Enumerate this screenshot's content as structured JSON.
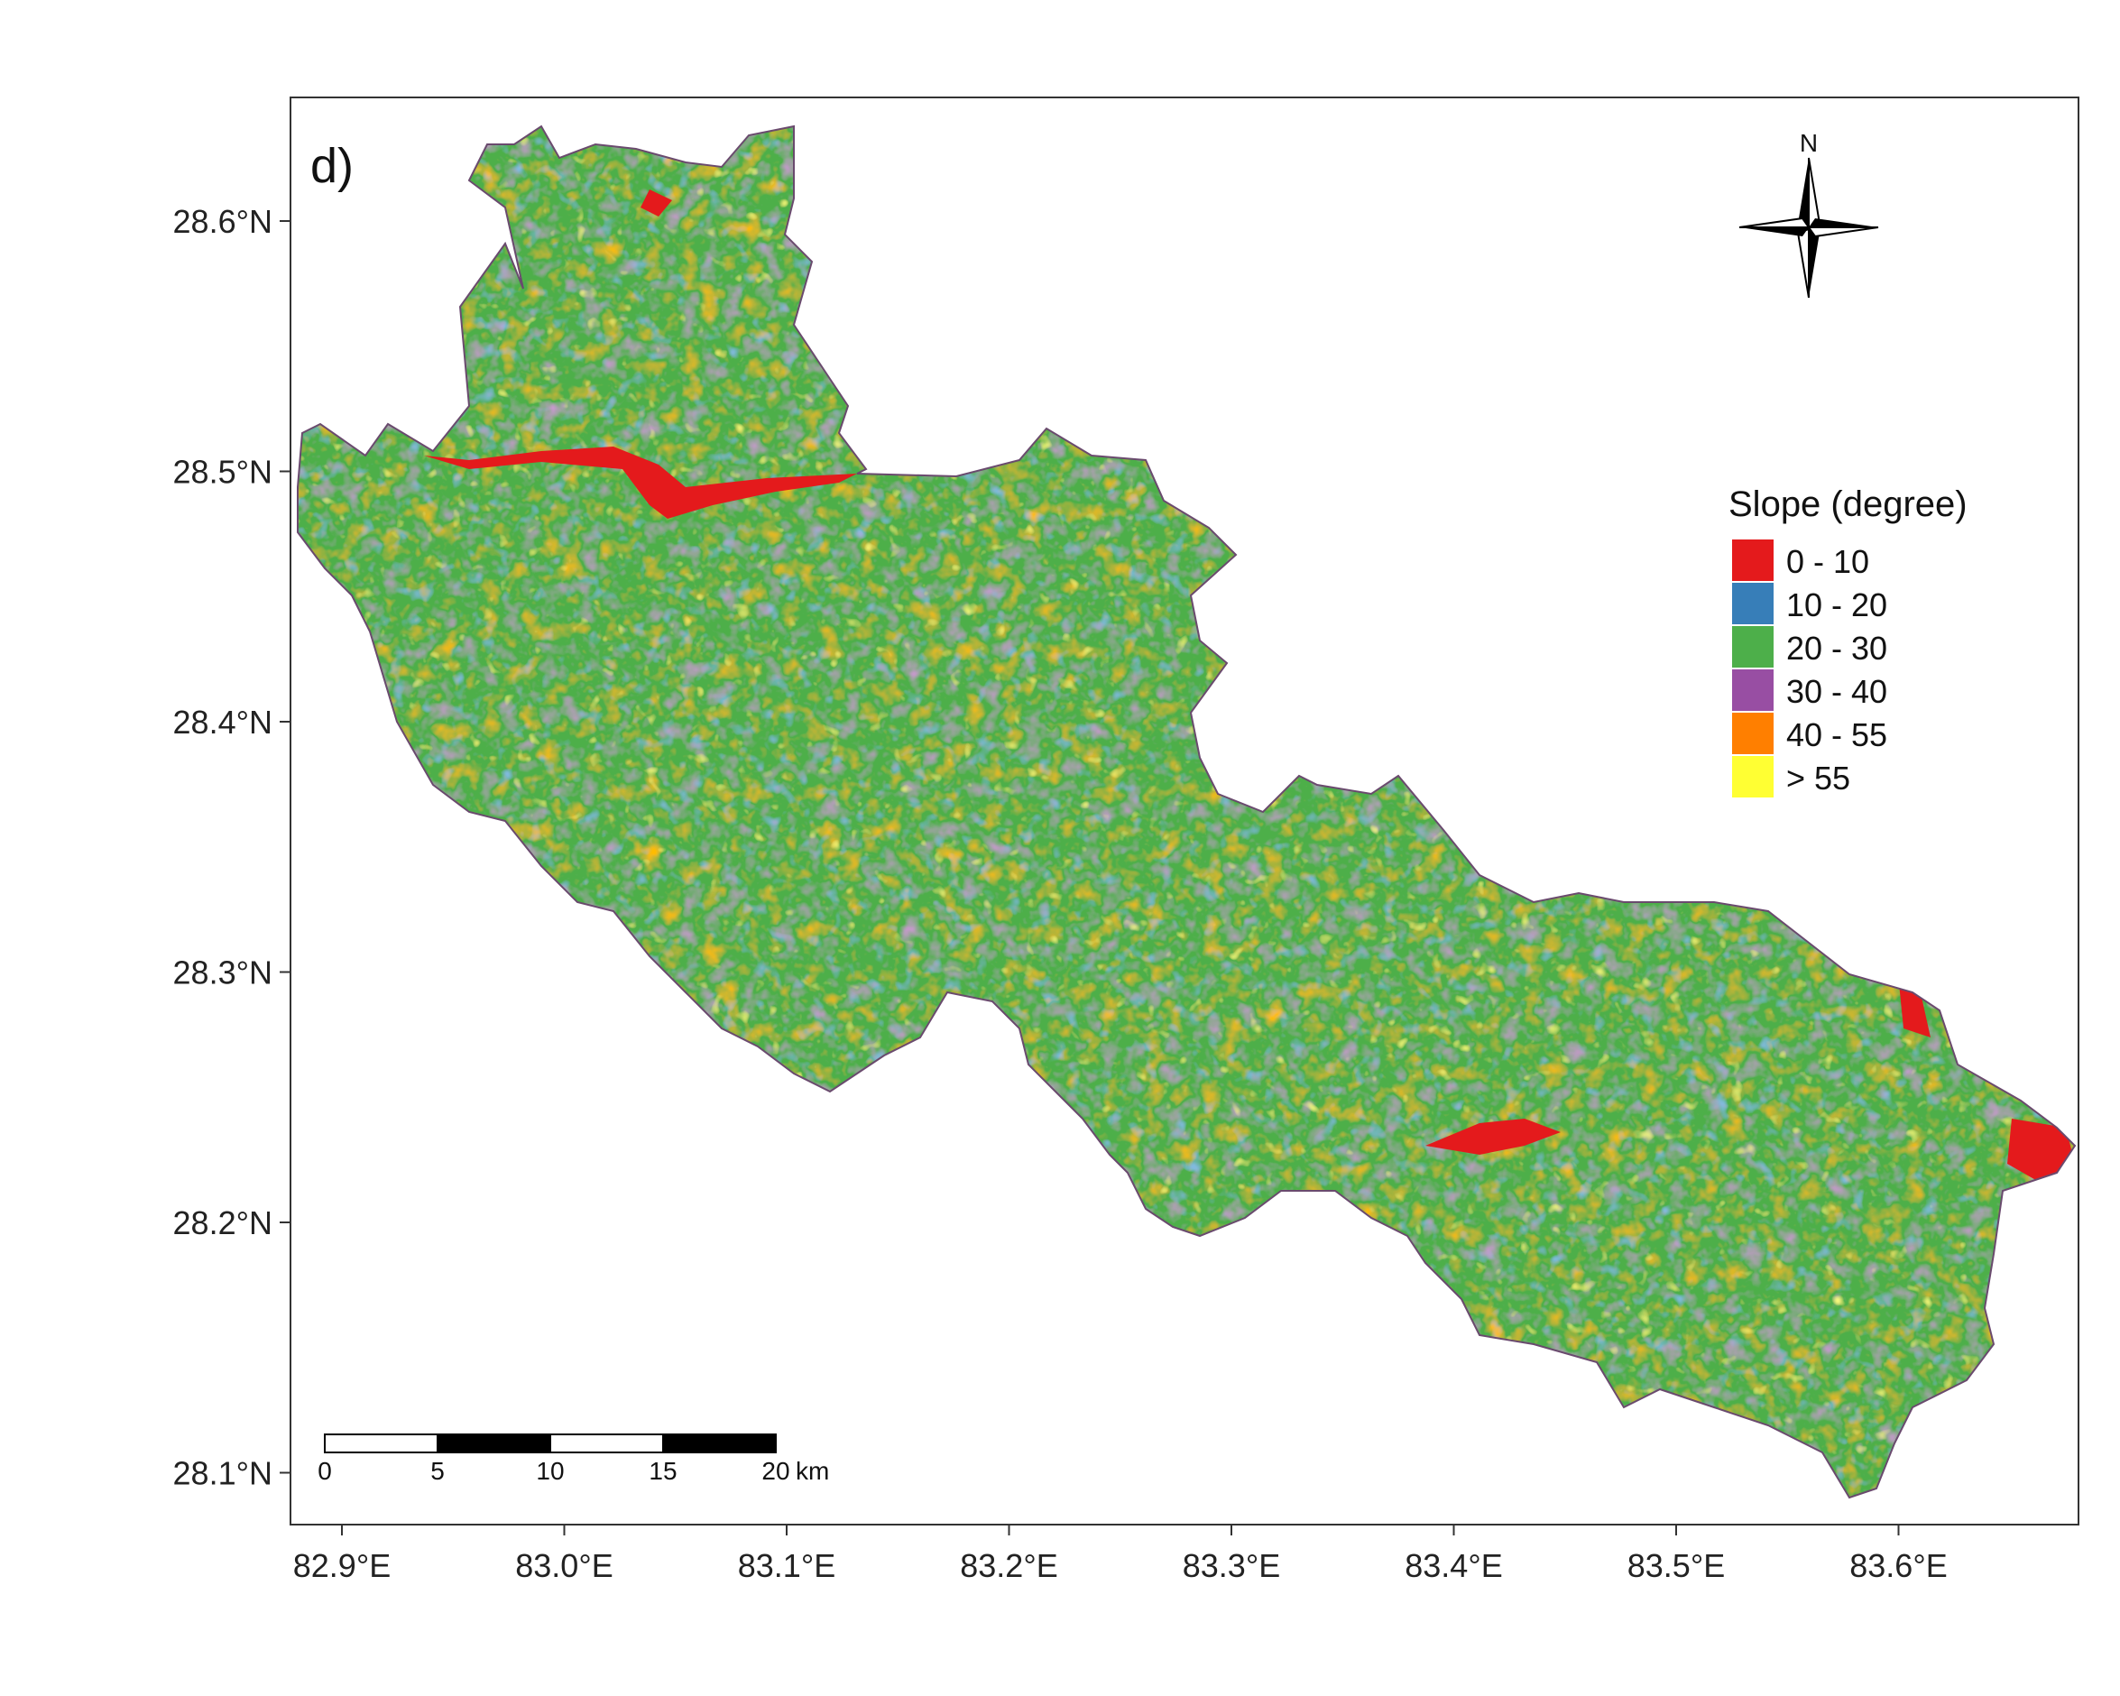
{
  "panel_label": "d)",
  "north_arrow": {
    "label": "N"
  },
  "legend": {
    "title": "Slope (degree)",
    "items": [
      {
        "label": "0 - 10",
        "color": "#e41a1c"
      },
      {
        "label": "10 - 20",
        "color": "#377eb8"
      },
      {
        "label": "20 - 30",
        "color": "#4daf4a"
      },
      {
        "label": "30 - 40",
        "color": "#984ea3"
      },
      {
        "label": "40 - 55",
        "color": "#ff7f00"
      },
      {
        "label": "> 55",
        "color": "#ffff33"
      }
    ]
  },
  "scale_bar": {
    "ticks": [
      "0",
      "5",
      "10",
      "15",
      "20"
    ],
    "unit": "km"
  },
  "axes": {
    "x_ticks": [
      "82.9°E",
      "83.0°E",
      "83.1°E",
      "83.2°E",
      "83.3°E",
      "83.4°E",
      "83.5°E",
      "83.6°E"
    ],
    "y_ticks": [
      "28.6°N",
      "28.5°N",
      "28.4°N",
      "28.3°N",
      "28.2°N",
      "28.1°N"
    ]
  }
}
